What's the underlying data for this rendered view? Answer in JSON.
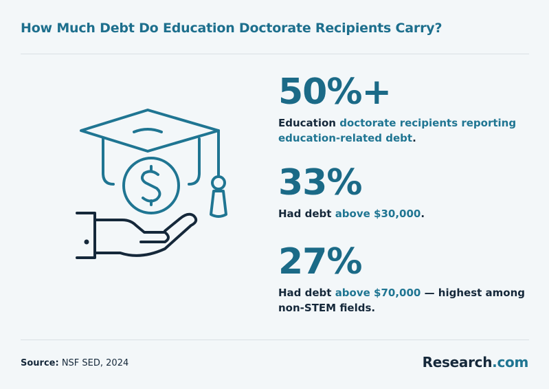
{
  "header": {
    "title": "How Much Debt Do Education Doctorate Recipients Carry?"
  },
  "stats": [
    {
      "value": "50%+",
      "description": [
        {
          "text": "Education ",
          "emphasis": false
        },
        {
          "text": "doctorate recipients reporting education-related debt",
          "emphasis": true
        },
        {
          "text": ".",
          "emphasis": false
        }
      ]
    },
    {
      "value": "33%",
      "description": [
        {
          "text": "Had debt ",
          "emphasis": false
        },
        {
          "text": "above $30,000",
          "emphasis": true
        },
        {
          "text": ".",
          "emphasis": false
        }
      ]
    },
    {
      "value": "27%",
      "description": [
        {
          "text": "Had debt ",
          "emphasis": false
        },
        {
          "text": "above $70,000",
          "emphasis": true
        },
        {
          "text": " — highest among non-STEM fields.",
          "emphasis": false
        }
      ]
    }
  ],
  "footer": {
    "source_label": "Source:",
    "source": "NSF SED, 2024",
    "brand": "Research",
    "brand_suffix": ".com"
  }
}
